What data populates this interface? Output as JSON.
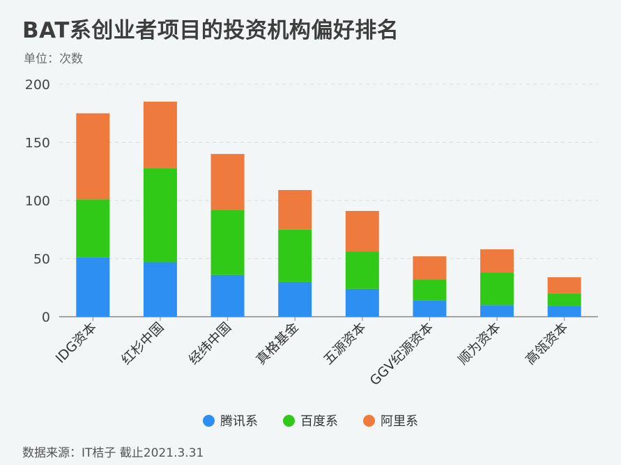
{
  "title": "BAT系创业者项目的投资机构偏好排名",
  "subtitle": "单位：次数",
  "source": "数据来源：IT桔子 截止2021.3.31",
  "colors": {
    "tencent": "#2e8ff2",
    "baidu": "#30c918",
    "alibaba": "#ee7a3e",
    "grid": "#d9dde0",
    "axis": "#888888",
    "text": "#333333"
  },
  "chart_data": {
    "type": "bar",
    "stacked": true,
    "categories": [
      "IDG资本",
      "红杉中国",
      "经纬中国",
      "真格基金",
      "五源资本",
      "GGV纪源资本",
      "顺为资本",
      "高瓴资本"
    ],
    "series": [
      {
        "name": "腾讯系",
        "color": "#2e8ff2",
        "values": [
          51,
          47,
          36,
          30,
          24,
          14,
          10,
          9
        ]
      },
      {
        "name": "百度系",
        "color": "#30c918",
        "values": [
          50,
          81,
          56,
          45,
          32,
          18,
          28,
          11
        ]
      },
      {
        "name": "阿里系",
        "color": "#ee7a3e",
        "values": [
          74,
          57,
          48,
          34,
          35,
          20,
          20,
          14
        ]
      }
    ],
    "ylim": [
      0,
      200
    ],
    "yticks": [
      0,
      50,
      100,
      150,
      200
    ],
    "grid": true,
    "legend_position": "bottom"
  }
}
